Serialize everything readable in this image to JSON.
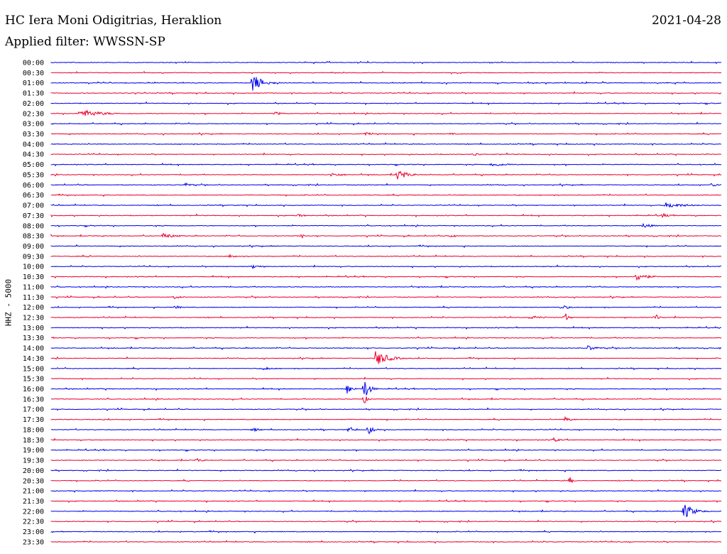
{
  "header": {
    "station": "HC Iera Moni Odigitrias, Heraklion",
    "date": "2021-04-28",
    "filter": "Applied filter: WWSSN-SP"
  },
  "colors": {
    "blue": "#0000ee",
    "red": "#ee0033"
  },
  "chart_data": {
    "type": "line",
    "title": "HC Iera Moni Odigitrias, Heraklion",
    "ylabel": "HHZ - 5000",
    "xlabel": "",
    "trace_labels": [
      "00:00",
      "00:30",
      "01:00",
      "01:30",
      "02:00",
      "02:30",
      "03:00",
      "03:30",
      "04:00",
      "04:30",
      "05:00",
      "05:30",
      "06:00",
      "06:30",
      "07:00",
      "07:30",
      "08:00",
      "08:30",
      "09:00",
      "09:30",
      "10:00",
      "10:30",
      "11:00",
      "11:30",
      "12:00",
      "12:30",
      "13:00",
      "13:30",
      "14:00",
      "14:30",
      "15:00",
      "15:30",
      "16:00",
      "16:30",
      "17:00",
      "17:30",
      "18:00",
      "18:30",
      "19:00",
      "19:30",
      "20:00",
      "20:30",
      "21:00",
      "21:30",
      "22:00",
      "22:30",
      "23:00",
      "23:30"
    ],
    "trace_colors": [
      "blue",
      "red"
    ],
    "trace_minutes": 30,
    "events": [
      {
        "trace": "01:00",
        "minute": 9.0,
        "amp": 14,
        "dur": 1.2
      },
      {
        "trace": "02:30",
        "minute": 1.3,
        "amp": 6,
        "dur": 2.5
      },
      {
        "trace": "02:30",
        "minute": 10.0,
        "amp": 3,
        "dur": 1.0
      },
      {
        "trace": "03:30",
        "minute": 14.0,
        "amp": 3,
        "dur": 0.8
      },
      {
        "trace": "03:30",
        "minute": 17.8,
        "amp": 2,
        "dur": 0.8
      },
      {
        "trace": "04:30",
        "minute": 18.9,
        "amp": 3,
        "dur": 0.8
      },
      {
        "trace": "05:00",
        "minute": 19.7,
        "amp": 3,
        "dur": 2.0
      },
      {
        "trace": "05:30",
        "minute": 15.5,
        "amp": 8,
        "dur": 1.2
      },
      {
        "trace": "05:30",
        "minute": 12.5,
        "amp": 3,
        "dur": 1.5
      },
      {
        "trace": "06:00",
        "minute": 6.0,
        "amp": 3,
        "dur": 0.8
      },
      {
        "trace": "06:00",
        "minute": 29.5,
        "amp": 3,
        "dur": 1.0
      },
      {
        "trace": "07:00",
        "minute": 27.5,
        "amp": 4,
        "dur": 2.5
      },
      {
        "trace": "07:30",
        "minute": 27.3,
        "amp": 4,
        "dur": 0.8
      },
      {
        "trace": "07:30",
        "minute": 11.0,
        "amp": 3,
        "dur": 0.8
      },
      {
        "trace": "08:00",
        "minute": 26.5,
        "amp": 4,
        "dur": 1.0
      },
      {
        "trace": "08:30",
        "minute": 5.0,
        "amp": 4,
        "dur": 1.5
      },
      {
        "trace": "08:30",
        "minute": 17.9,
        "amp": 8,
        "dur": 0.3
      },
      {
        "trace": "08:30",
        "minute": 11.2,
        "amp": 5,
        "dur": 0.3
      },
      {
        "trace": "09:30",
        "minute": 1.7,
        "amp": 4,
        "dur": 0.2
      },
      {
        "trace": "09:30",
        "minute": 8.0,
        "amp": 3,
        "dur": 1.0
      },
      {
        "trace": "10:00",
        "minute": 9.0,
        "amp": 3,
        "dur": 1.0
      },
      {
        "trace": "10:30",
        "minute": 26.2,
        "amp": 7,
        "dur": 1.2
      },
      {
        "trace": "11:30",
        "minute": 5.5,
        "amp": 3,
        "dur": 0.8
      },
      {
        "trace": "12:00",
        "minute": 5.5,
        "amp": 3,
        "dur": 0.8
      },
      {
        "trace": "12:00",
        "minute": 22.8,
        "amp": 4,
        "dur": 1.0
      },
      {
        "trace": "12:30",
        "minute": 23.0,
        "amp": 7,
        "dur": 0.5
      },
      {
        "trace": "12:30",
        "minute": 27.0,
        "amp": 7,
        "dur": 0.5
      },
      {
        "trace": "12:30",
        "minute": 21.5,
        "amp": 3,
        "dur": 1.5
      },
      {
        "trace": "14:00",
        "minute": 24.0,
        "amp": 4,
        "dur": 1.2
      },
      {
        "trace": "14:30",
        "minute": 14.5,
        "amp": 12,
        "dur": 1.5
      },
      {
        "trace": "15:00",
        "minute": 9.5,
        "amp": 3,
        "dur": 1.0
      },
      {
        "trace": "16:00",
        "minute": 13.2,
        "amp": 10,
        "dur": 0.6
      },
      {
        "trace": "16:00",
        "minute": 14.0,
        "amp": 18,
        "dur": 0.6
      },
      {
        "trace": "16:30",
        "minute": 14.0,
        "amp": 8,
        "dur": 0.4
      },
      {
        "trace": "17:30",
        "minute": 23.0,
        "amp": 4,
        "dur": 0.8
      },
      {
        "trace": "18:00",
        "minute": 13.3,
        "amp": 6,
        "dur": 0.6
      },
      {
        "trace": "18:00",
        "minute": 14.2,
        "amp": 7,
        "dur": 0.6
      },
      {
        "trace": "18:00",
        "minute": 9.0,
        "amp": 3,
        "dur": 1.0
      },
      {
        "trace": "18:30",
        "minute": 22.5,
        "amp": 3,
        "dur": 0.8
      },
      {
        "trace": "19:30",
        "minute": 6.5,
        "amp": 3,
        "dur": 0.8
      },
      {
        "trace": "20:30",
        "minute": 23.2,
        "amp": 8,
        "dur": 0.3
      },
      {
        "trace": "22:00",
        "minute": 28.3,
        "amp": 12,
        "dur": 1.2
      }
    ]
  }
}
